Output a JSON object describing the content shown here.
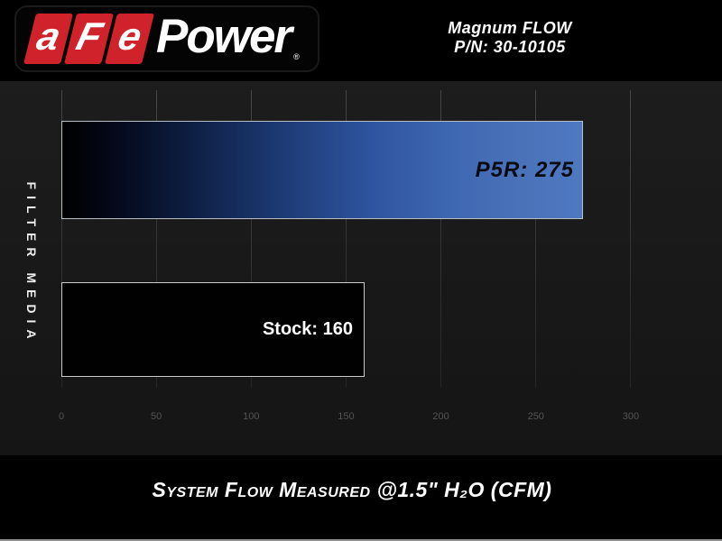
{
  "header": {
    "logo": {
      "tiles": [
        "a",
        "F",
        "e"
      ],
      "wordmark": "Power",
      "registered_mark": "®",
      "tile_color": "#d0222a"
    },
    "product_line1": "Magnum FLOW",
    "product_line2": "P/N: 30-10105"
  },
  "chart": {
    "y_axis_label": "FILTER MEDIA",
    "caption": "System Flow Measured @1.5\" H₂O (CFM)",
    "accent_blue": "#4a73ba",
    "grid_color": "#3a3a3a",
    "tick_color": "#545454"
  },
  "chart_data": {
    "type": "bar",
    "orientation": "horizontal",
    "categories": [
      "P5R",
      "Stock"
    ],
    "values": [
      275,
      160
    ],
    "data_labels": [
      "P5R: 275",
      "Stock: 160"
    ],
    "title": "Magnum FLOW P/N: 30-10105",
    "xlabel": "System Flow Measured @1.5\" H₂O (CFM)",
    "ylabel": "FILTER MEDIA",
    "xlim": [
      0,
      300
    ],
    "xticks": [
      0,
      50,
      100,
      150,
      200,
      250,
      300
    ],
    "grid": true,
    "legend": false,
    "bar_styles": [
      {
        "fill": "gradient #000000 to #4a73ba",
        "border": "#b9bdc5",
        "label_color": "#0b0b12"
      },
      {
        "fill": "#000000",
        "border": "#c9c9c9",
        "label_color": "#ffffff"
      }
    ]
  }
}
